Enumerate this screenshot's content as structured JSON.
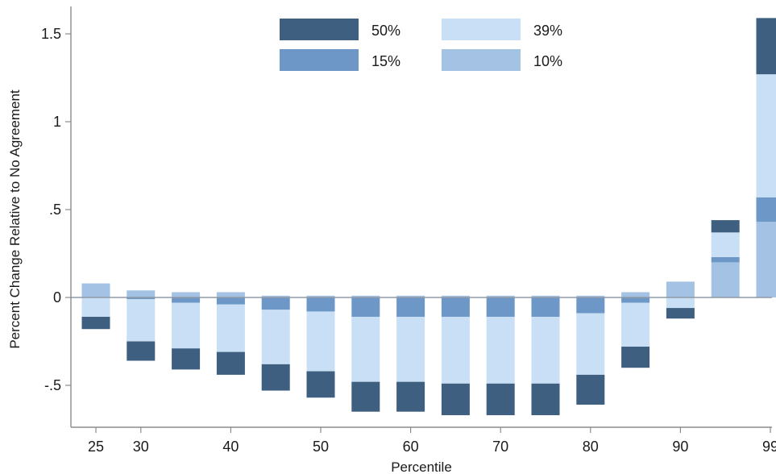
{
  "chart_data": {
    "type": "bar",
    "stacked": true,
    "title": "",
    "xlabel": "Percentile",
    "ylabel": "Percent Change Relative to No Agreement",
    "ylim": [
      -0.75,
      1.6
    ],
    "yticks": [
      {
        "value": 1.5,
        "label": "1.5"
      },
      {
        "value": 1,
        "label": "1"
      },
      {
        "value": 0.5,
        "label": ".5"
      },
      {
        "value": 0,
        "label": "0"
      },
      {
        "value": -0.5,
        "label": "-.5"
      }
    ],
    "xticks": [
      {
        "value": 25,
        "label": "25"
      },
      {
        "value": 30,
        "label": "30"
      },
      {
        "value": 40,
        "label": "40"
      },
      {
        "value": 50,
        "label": "50"
      },
      {
        "value": 60,
        "label": "60"
      },
      {
        "value": 70,
        "label": "70"
      },
      {
        "value": 80,
        "label": "80"
      },
      {
        "value": 90,
        "label": "90"
      },
      {
        "value": 99,
        "label": "99"
      }
    ],
    "x": [
      25,
      30,
      35,
      40,
      45,
      50,
      55,
      60,
      65,
      70,
      75,
      80,
      85,
      90,
      95,
      99
    ],
    "grid": false,
    "legend_position": "top",
    "series": [
      {
        "name": "10%",
        "color": "#a3c2e4",
        "values": [
          0.08,
          0.04,
          0.03,
          0.03,
          0.01,
          0.01,
          0.01,
          0.01,
          0.01,
          0.01,
          0.01,
          0.01,
          0.03,
          0.09,
          0.2,
          0.43
        ]
      },
      {
        "name": "15%",
        "color": "#6d97c6",
        "values": [
          0.0,
          -0.01,
          -0.03,
          -0.04,
          -0.07,
          -0.08,
          -0.11,
          -0.11,
          -0.11,
          -0.11,
          -0.11,
          -0.09,
          -0.03,
          0.0,
          0.03,
          0.14
        ]
      },
      {
        "name": "39%",
        "color": "#c9dff5",
        "values": [
          -0.11,
          -0.24,
          -0.26,
          -0.27,
          -0.31,
          -0.34,
          -0.37,
          -0.37,
          -0.38,
          -0.38,
          -0.38,
          -0.35,
          -0.25,
          -0.06,
          0.14,
          0.7
        ]
      },
      {
        "name": "50%",
        "color": "#3e5f80",
        "values": [
          -0.07,
          -0.11,
          -0.12,
          -0.13,
          -0.15,
          -0.15,
          -0.17,
          -0.17,
          -0.18,
          -0.18,
          -0.18,
          -0.17,
          -0.12,
          -0.06,
          0.07,
          0.32
        ]
      }
    ],
    "legend": [
      {
        "name": "50%",
        "color": "#3e5f80"
      },
      {
        "name": "39%",
        "color": "#c9dff5"
      },
      {
        "name": "15%",
        "color": "#6d97c6"
      },
      {
        "name": "10%",
        "color": "#a3c2e4"
      }
    ]
  },
  "colors": {
    "axis": "#8c8c8c",
    "zero_line": "#8f9aa6",
    "text": "#1a1a1a"
  }
}
